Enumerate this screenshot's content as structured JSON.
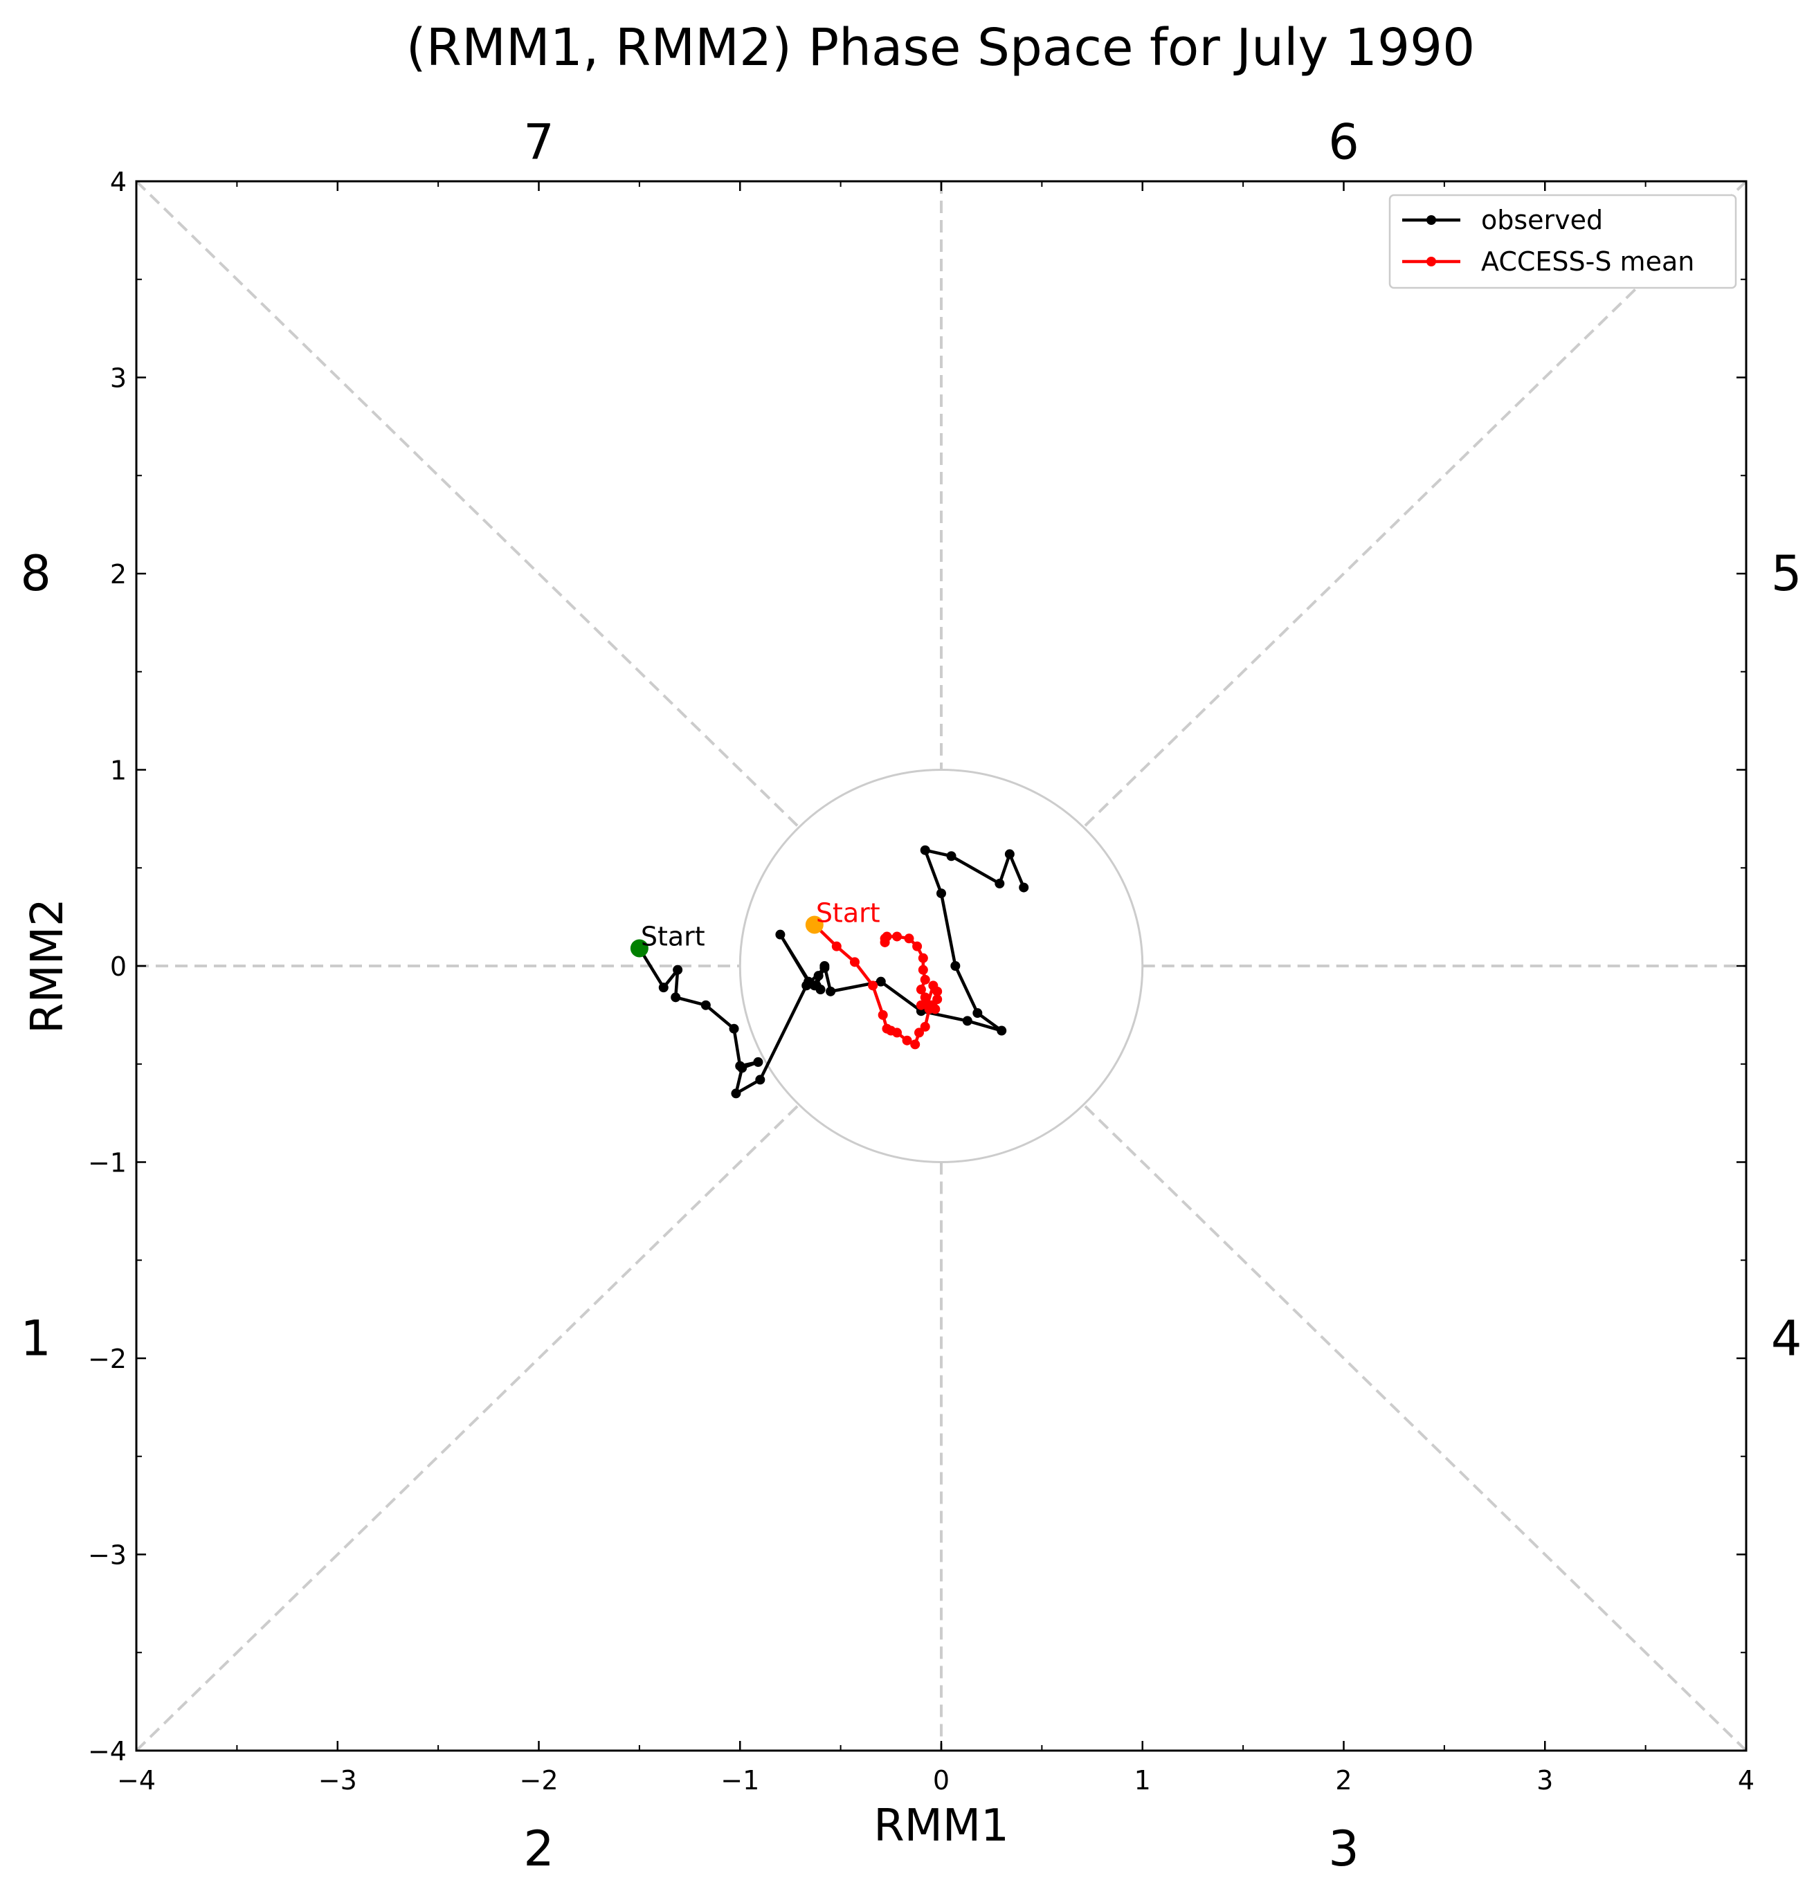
{
  "chart_data": {
    "type": "line",
    "title": "(RMM1, RMM2) Phase Space for July 1990",
    "xlabel": "RMM1",
    "ylabel": "RMM2",
    "xlim": [
      -4,
      4
    ],
    "ylim": [
      -4,
      4
    ],
    "xticks": [
      "−4",
      "−3",
      "−2",
      "−1",
      "0",
      "1",
      "2",
      "3",
      "4"
    ],
    "yticks": [
      "−4",
      "−3",
      "−2",
      "−1",
      "0",
      "1",
      "2",
      "3",
      "4"
    ],
    "tick_values": [
      -4,
      -3,
      -2,
      -1,
      0,
      1,
      2,
      3,
      4
    ],
    "phase_labels": [
      {
        "label": "1",
        "x": -4.5,
        "y": -1.9
      },
      {
        "label": "2",
        "x": -2.0,
        "y": -4.5
      },
      {
        "label": "3",
        "x": 2.0,
        "y": -4.5
      },
      {
        "label": "4",
        "x": 4.2,
        "y": -1.9
      },
      {
        "label": "5",
        "x": 4.2,
        "y": 2.0
      },
      {
        "label": "6",
        "x": 2.0,
        "y": 4.2
      },
      {
        "label": "7",
        "x": -2.0,
        "y": 4.2
      },
      {
        "label": "8",
        "x": -4.5,
        "y": 2.0
      }
    ],
    "unit_circle_radius": 1,
    "grid": false,
    "legend_position": "top-right",
    "series": [
      {
        "name": "observed",
        "color": "#000000",
        "x": [
          -1.5,
          -1.38,
          -1.31,
          -1.32,
          -1.17,
          -1.03,
          -1.0,
          -0.91,
          -0.99,
          -1.02,
          -0.9,
          -0.67,
          -0.58,
          -0.61,
          -0.63,
          -0.6,
          -0.65,
          -0.8,
          -0.66,
          -0.62,
          -0.58,
          -0.55,
          -0.3,
          -0.1,
          0.13,
          0.3,
          0.18,
          0.07,
          0.0,
          -0.08,
          0.05,
          0.29,
          0.34,
          0.41
        ],
        "y": [
          0.09,
          -0.11,
          -0.02,
          -0.16,
          -0.2,
          -0.32,
          -0.51,
          -0.49,
          -0.52,
          -0.65,
          -0.58,
          -0.1,
          -0.01,
          -0.05,
          -0.1,
          -0.12,
          -0.09,
          0.16,
          -0.08,
          -0.1,
          0.0,
          -0.13,
          -0.08,
          -0.23,
          -0.28,
          -0.33,
          -0.24,
          0.0,
          0.37,
          0.59,
          0.56,
          0.42,
          0.57,
          0.4
        ]
      },
      {
        "name": "ACCESS-S mean",
        "color": "#ff0000",
        "x": [
          -0.63,
          -0.52,
          -0.43,
          -0.34,
          -0.29,
          -0.27,
          -0.25,
          -0.22,
          -0.17,
          -0.13,
          -0.11,
          -0.08,
          -0.06,
          -0.03,
          -0.02,
          -0.04,
          -0.07,
          -0.02,
          -0.05,
          -0.1,
          -0.08,
          -0.1,
          -0.08,
          -0.09,
          -0.09,
          -0.12,
          -0.16,
          -0.22,
          -0.27,
          -0.28,
          -0.28
        ],
        "y": [
          0.21,
          0.1,
          0.02,
          -0.1,
          -0.25,
          -0.32,
          -0.33,
          -0.34,
          -0.38,
          -0.4,
          -0.34,
          -0.31,
          -0.22,
          -0.22,
          -0.13,
          -0.1,
          -0.2,
          -0.17,
          -0.2,
          -0.2,
          -0.16,
          -0.12,
          -0.07,
          -0.02,
          0.04,
          0.1,
          0.14,
          0.15,
          0.15,
          0.12,
          0.14
        ]
      }
    ],
    "start_labels": [
      {
        "text": "Start",
        "x": -1.5,
        "y": 0.09,
        "color": "#000000",
        "marker_color": "#008000"
      },
      {
        "text": "Start",
        "x": -0.63,
        "y": 0.21,
        "color": "#ff0000",
        "marker_color": "#ffa500"
      }
    ]
  }
}
